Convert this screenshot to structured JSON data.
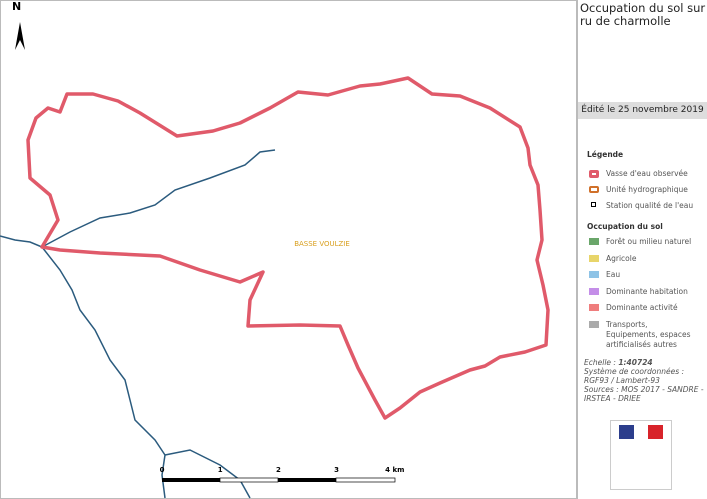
{
  "map": {
    "north": "N",
    "area_label": "BASSE VOULZIE",
    "scale_ticks": [
      "0",
      "1",
      "2",
      "3",
      "4 km"
    ]
  },
  "sidebar": {
    "title": [
      "Occupation du sol sur",
      "ru de charmolle"
    ],
    "edited": "Édité le 25 novembre 2019",
    "legend_title": "Légende",
    "legend": [
      "Vasse d'eau observée",
      "Unité hydrographique",
      "Station qualité de l'eau"
    ],
    "landuse_title": "Occupation du sol",
    "landuse": [
      "Forêt ou milieu naturel",
      "Agricole",
      "Eau",
      "Dominante habitation",
      "Dominante activité",
      "Transports, Equipements, espaces artificialisés autres"
    ],
    "scale_label": "Echelle :",
    "scale_value": "1:40724",
    "credits": [
      "Système de coordonnées :",
      "RGF93 / Lambert-93",
      "Sources : MOS 2017 - SANDRE -",
      "IRSTEA - DRIEE"
    ]
  }
}
